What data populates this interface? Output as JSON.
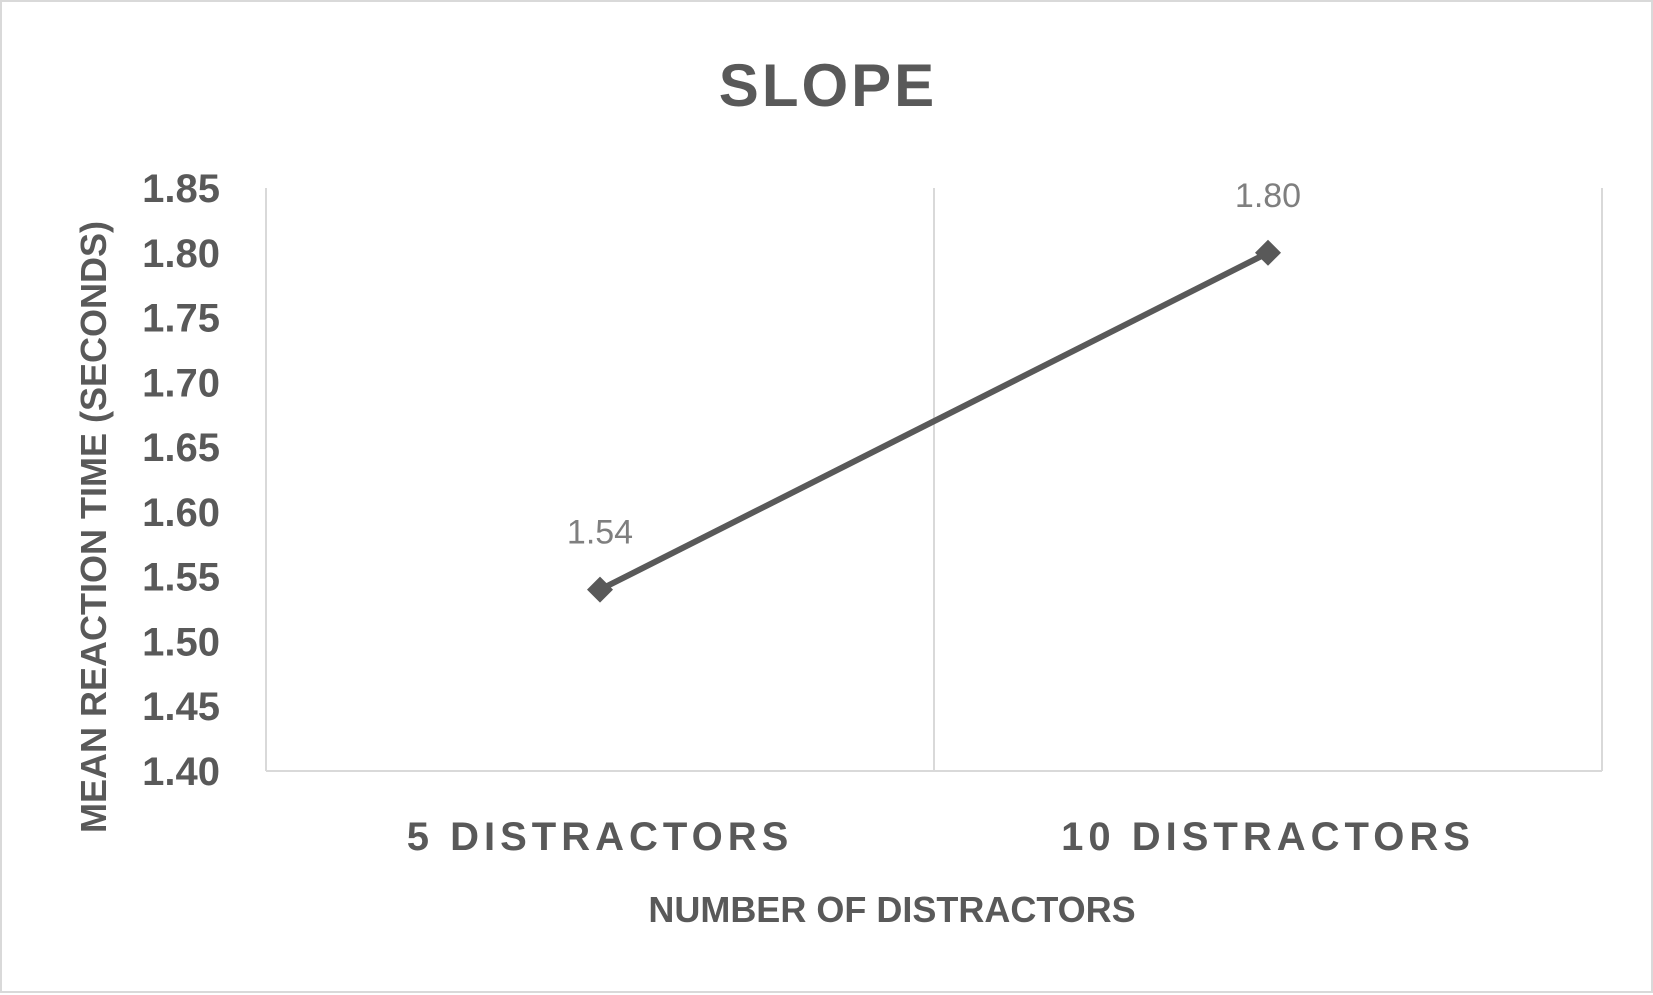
{
  "chart_data": {
    "type": "line",
    "title": "SLOPE",
    "xlabel": "NUMBER OF DISTRACTORS",
    "ylabel": "MEAN REACTION TIME (SECONDS)",
    "categories": [
      "5 DISTRACTORS",
      "10 DISTRACTORS"
    ],
    "series": [
      {
        "values": [
          1.54,
          1.8
        ],
        "data_labels": [
          "1.54",
          "1.80"
        ],
        "color": "#595959",
        "marker": "diamond"
      }
    ],
    "ylim": [
      1.4,
      1.85
    ],
    "yticks": [
      "1.40",
      "1.45",
      "1.50",
      "1.55",
      "1.60",
      "1.65",
      "1.70",
      "1.75",
      "1.80",
      "1.85"
    ],
    "grid": "vertical",
    "legend": "none"
  },
  "colors": {
    "text": "#595959",
    "data_label": "#7f7f7f",
    "gridline": "#d9d9d9",
    "border": "#d9d9d9",
    "series": "#595959"
  }
}
